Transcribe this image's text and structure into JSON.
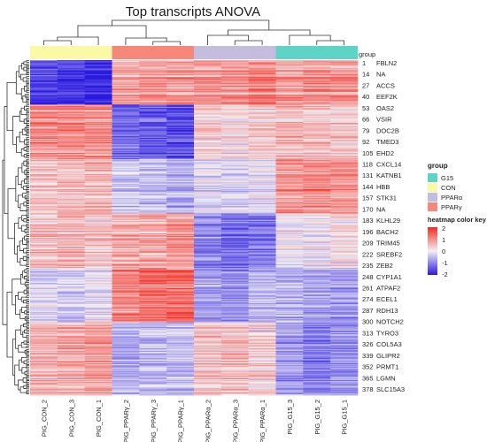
{
  "chart_data": {
    "type": "heatmap",
    "title": "Top transcripts ANOVA",
    "columns": [
      {
        "label": "PIG_CON_2",
        "group": "CON"
      },
      {
        "label": "PIG_CON_3",
        "group": "CON"
      },
      {
        "label": "PIG_CON_1",
        "group": "CON"
      },
      {
        "label": "PIG_PPARγ_2",
        "group": "PPARγ"
      },
      {
        "label": "PIG_PPARγ_3",
        "group": "PPARγ"
      },
      {
        "label": "PIG_PPARγ_1",
        "group": "PPARγ"
      },
      {
        "label": "PIG_PPARα_2",
        "group": "PPARα"
      },
      {
        "label": "PIG_PPARα_3",
        "group": "PPARα"
      },
      {
        "label": "PIG_PPARα_1",
        "group": "PPARα"
      },
      {
        "label": "PIG_G15_3",
        "group": "G15"
      },
      {
        "label": "PIG_G15_2",
        "group": "G15"
      },
      {
        "label": "PIG_G15_1",
        "group": "G15"
      }
    ],
    "group_bar_label": "group",
    "row_labels": [
      {
        "index": "1",
        "gene": "FBLN2"
      },
      {
        "index": "14",
        "gene": "NA"
      },
      {
        "index": "27",
        "gene": "ACCS"
      },
      {
        "index": "40",
        "gene": "EEF2K"
      },
      {
        "index": "53",
        "gene": "OAS2"
      },
      {
        "index": "66",
        "gene": "VSIR"
      },
      {
        "index": "79",
        "gene": "DOC2B"
      },
      {
        "index": "92",
        "gene": "TMED3"
      },
      {
        "index": "105",
        "gene": "EHD2"
      },
      {
        "index": "118",
        "gene": "CXCL14"
      },
      {
        "index": "131",
        "gene": "KATNB1"
      },
      {
        "index": "144",
        "gene": "HBB"
      },
      {
        "index": "157",
        "gene": "STK31"
      },
      {
        "index": "170",
        "gene": "NA"
      },
      {
        "index": "183",
        "gene": "KLHL29"
      },
      {
        "index": "196",
        "gene": "BACH2"
      },
      {
        "index": "209",
        "gene": "TRIM45"
      },
      {
        "index": "222",
        "gene": "SREBF2"
      },
      {
        "index": "235",
        "gene": "ZEB2"
      },
      {
        "index": "248",
        "gene": "CYP1A1"
      },
      {
        "index": "261",
        "gene": "ATPAF2"
      },
      {
        "index": "274",
        "gene": "ECEL1"
      },
      {
        "index": "287",
        "gene": "RDH13"
      },
      {
        "index": "300",
        "gene": "NOTCH2"
      },
      {
        "index": "313",
        "gene": "TYRO3"
      },
      {
        "index": "326",
        "gene": "COL5A3"
      },
      {
        "index": "339",
        "gene": "GLIPR2"
      },
      {
        "index": "352",
        "gene": "PRMT1"
      },
      {
        "index": "365",
        "gene": "LGMN"
      },
      {
        "index": "378",
        "gene": "SLC15A3"
      }
    ],
    "cluster_blocks": [
      {
        "rows": "1-40",
        "values": [
          -1.6,
          -1.7,
          -1.9,
          0.7,
          0.8,
          0.8,
          0.9,
          0.9,
          1.0,
          0.8,
          0.9,
          0.8
        ]
      },
      {
        "rows": "53-105",
        "values": [
          1.0,
          1.1,
          1.0,
          -1.3,
          -1.4,
          -1.5,
          0.3,
          0.2,
          0.4,
          0.6,
          0.5,
          0.4
        ]
      },
      {
        "rows": "118-170",
        "values": [
          0.4,
          0.5,
          0.6,
          -0.4,
          -0.5,
          -0.6,
          -0.2,
          -0.3,
          -0.1,
          0.9,
          1.0,
          0.9
        ]
      },
      {
        "rows": "183-235",
        "values": [
          0.5,
          0.6,
          0.4,
          0.8,
          0.7,
          0.9,
          -1.0,
          -1.2,
          -1.1,
          0.0,
          -0.1,
          0.2
        ]
      },
      {
        "rows": "248-300",
        "values": [
          -0.3,
          -0.4,
          -0.2,
          1.1,
          1.4,
          1.3,
          -0.8,
          -0.9,
          -0.6,
          -0.6,
          -0.7,
          -0.8
        ]
      },
      {
        "rows": "313-378",
        "values": [
          0.6,
          0.7,
          0.9,
          -0.6,
          -0.5,
          -0.5,
          0.4,
          0.5,
          0.3,
          -0.8,
          -1.1,
          -0.9
        ]
      }
    ],
    "color_key": {
      "title": "heatmap color key",
      "ticks": [
        "2",
        "1",
        "0",
        "-1",
        "-2"
      ],
      "range": [
        -2,
        2
      ],
      "colors": {
        "low": "#2a1ae0",
        "mid": "#f2f0f4",
        "high": "#f52a20"
      }
    },
    "group_legend": {
      "title": "group",
      "items": [
        {
          "label": "G15",
          "color": "#5fd3c6"
        },
        {
          "label": "CON",
          "color": "#fbf8a6"
        },
        {
          "label": "PPARα",
          "color": "#c5bde0"
        },
        {
          "label": "PPARγ",
          "color": "#f7877a"
        }
      ]
    },
    "dendrogram": "row and column hierarchical clustering trees"
  }
}
